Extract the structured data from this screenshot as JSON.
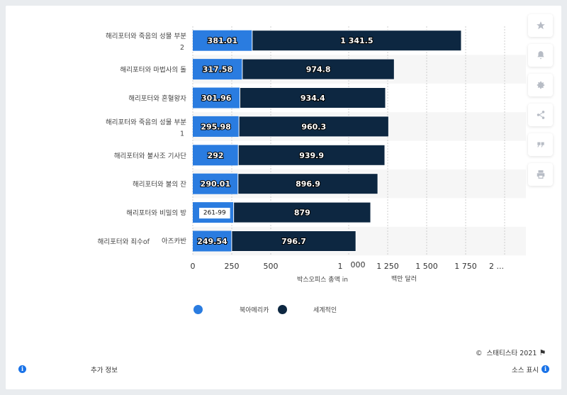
{
  "chart_data": {
    "type": "bar",
    "orientation": "horizontal",
    "stacked": true,
    "categories": [
      [
        "해리포터와 죽음의 성물 부분",
        "2"
      ],
      [
        "해리포터와 마법사의 돌"
      ],
      [
        "해리포터와 혼혈왕자"
      ],
      [
        "해리포터와 죽음의 성물 부분",
        "1"
      ],
      [
        "해리포터와 불사조 기사단"
      ],
      [
        "해리포터와 불의 잔"
      ],
      [
        "해리포터와 비밀의 방"
      ],
      [
        "해리포터와 죄수of",
        "아즈카반"
      ]
    ],
    "series": [
      {
        "name": "북아메리카",
        "color": "#2a7ce0",
        "values": [
          381.01,
          317.58,
          301.96,
          295.98,
          292,
          290.01,
          261.99,
          249.54
        ],
        "labels": [
          "381.01",
          "317.58",
          "301.96",
          "295.98",
          "292",
          "290.01",
          "261-99",
          "249.54"
        ]
      },
      {
        "name": "세계적인",
        "color": "#0d2741",
        "values": [
          1341.5,
          974.8,
          934.4,
          960.3,
          939.9,
          896.9,
          879,
          796.7
        ],
        "labels": [
          "1 341.5",
          "974.8",
          "934.4",
          "960.3",
          "939.9",
          "896.9",
          "879",
          "796.7"
        ]
      }
    ],
    "xlim": [
      0,
      2000
    ],
    "xticks": [
      "0",
      "250",
      "500",
      "1",
      "1 250",
      "1 500",
      "1 750",
      "2 ..."
    ],
    "xtick_extra": "000",
    "xlabel_parts": [
      "박스오피스 총액 in",
      "백만 달러"
    ],
    "grid": true,
    "legend": "bottom"
  },
  "legend": {
    "series1": "북아메리카",
    "series2": "세계적인"
  },
  "footer": {
    "copyright": "스태티스타 2021",
    "more_info": "추가 정보",
    "show_source": "소스 표시"
  },
  "sidebar_icons": [
    "star-icon",
    "bell-icon",
    "gear-icon",
    "share-icon",
    "quote-icon",
    "print-icon"
  ]
}
